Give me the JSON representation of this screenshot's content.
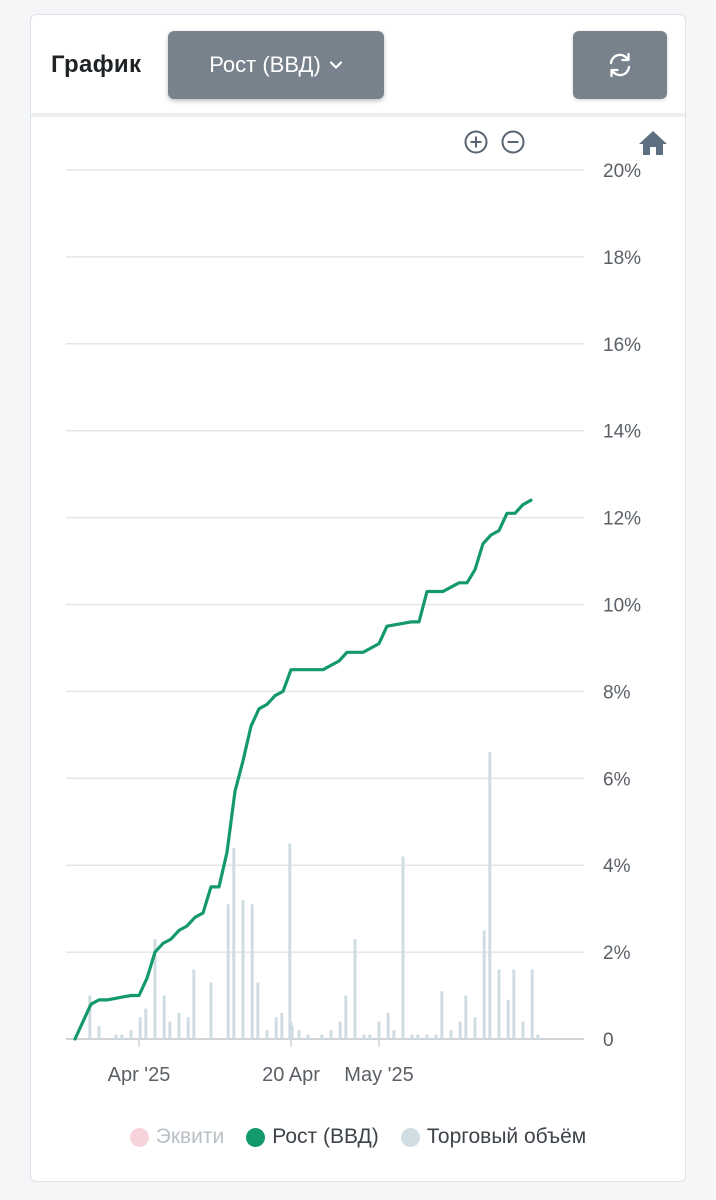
{
  "header": {
    "title": "График",
    "dropdown_label": "Рост (ВВД)",
    "refresh_icon": "refresh-icon"
  },
  "toolbar": {
    "zoom_in_icon": "zoom-in-icon",
    "zoom_out_icon": "zoom-out-icon",
    "home_icon": "home-icon"
  },
  "colors": {
    "growth_line": "#149a6a",
    "volume_bars": "#cfdde3",
    "equity_legend": "#f6d3da",
    "grid": "#e3e6e9",
    "button": "#78828c"
  },
  "legend": [
    {
      "label": "Эквити",
      "color": "#f6d3da",
      "active": false
    },
    {
      "label": "Рост (ВВД)",
      "color": "#149a6a",
      "active": true
    },
    {
      "label": "Торговый объём",
      "color": "#cfdde3",
      "active": true
    }
  ],
  "chart_data": {
    "type": "line",
    "x_axis": {
      "start": "2025-03-24",
      "end": "2025-05-24",
      "ticks": [
        {
          "date": "2025-04-01",
          "label": "Apr '25"
        },
        {
          "date": "2025-04-20",
          "label": "20 Apr"
        },
        {
          "date": "2025-05-01",
          "label": "May '25"
        }
      ]
    },
    "y_axis": {
      "ylim": [
        0,
        20
      ],
      "position": "right",
      "ticks": [
        0,
        2,
        4,
        6,
        8,
        10,
        12,
        14,
        16,
        18,
        20
      ],
      "tick_labels": [
        "0",
        "2%",
        "4%",
        "6%",
        "8%",
        "10%",
        "12%",
        "14%",
        "16%",
        "18%",
        "20%"
      ]
    },
    "grid": true,
    "legend_position": "bottom",
    "series": [
      {
        "name": "Рост (ВВД)",
        "type": "line",
        "color": "#149a6a",
        "points": [
          [
            "2025-03-24",
            0.0
          ],
          [
            "2025-03-26",
            0.8
          ],
          [
            "2025-03-27",
            0.9
          ],
          [
            "2025-03-28",
            0.9
          ],
          [
            "2025-03-31",
            1.0
          ],
          [
            "2025-04-01",
            1.0
          ],
          [
            "2025-04-02",
            1.4
          ],
          [
            "2025-04-03",
            2.0
          ],
          [
            "2025-04-04",
            2.2
          ],
          [
            "2025-04-05",
            2.3
          ],
          [
            "2025-04-06",
            2.5
          ],
          [
            "2025-04-07",
            2.6
          ],
          [
            "2025-04-08",
            2.8
          ],
          [
            "2025-04-09",
            2.9
          ],
          [
            "2025-04-10",
            3.5
          ],
          [
            "2025-04-11",
            3.5
          ],
          [
            "2025-04-12",
            4.3
          ],
          [
            "2025-04-13",
            5.7
          ],
          [
            "2025-04-14",
            6.4
          ],
          [
            "2025-04-15",
            7.2
          ],
          [
            "2025-04-16",
            7.6
          ],
          [
            "2025-04-17",
            7.7
          ],
          [
            "2025-04-18",
            7.9
          ],
          [
            "2025-04-19",
            8.0
          ],
          [
            "2025-04-20",
            8.5
          ],
          [
            "2025-04-22",
            8.5
          ],
          [
            "2025-04-24",
            8.5
          ],
          [
            "2025-04-26",
            8.7
          ],
          [
            "2025-04-27",
            8.9
          ],
          [
            "2025-04-29",
            8.9
          ],
          [
            "2025-04-30",
            9.0
          ],
          [
            "2025-05-01",
            9.1
          ],
          [
            "2025-05-02",
            9.5
          ],
          [
            "2025-05-05",
            9.6
          ],
          [
            "2025-05-06",
            9.6
          ],
          [
            "2025-05-07",
            10.3
          ],
          [
            "2025-05-09",
            10.3
          ],
          [
            "2025-05-11",
            10.5
          ],
          [
            "2025-05-12",
            10.5
          ],
          [
            "2025-05-13",
            10.8
          ],
          [
            "2025-05-14",
            11.4
          ],
          [
            "2025-05-15",
            11.6
          ],
          [
            "2025-05-16",
            11.7
          ],
          [
            "2025-05-17",
            12.1
          ],
          [
            "2025-05-18",
            12.1
          ],
          [
            "2025-05-19",
            12.3
          ],
          [
            "2025-05-20",
            12.4
          ]
        ]
      },
      {
        "name": "Торговый объём",
        "type": "bar",
        "color": "#cfdde3",
        "points": [
          [
            "2025-03-26",
            1.0
          ],
          [
            "2025-03-27",
            0.3
          ],
          [
            "2025-03-29",
            0.1
          ],
          [
            "2025-03-30",
            0.1
          ],
          [
            "2025-03-31",
            0.2
          ],
          [
            "2025-04-01",
            0.5
          ],
          [
            "2025-04-02",
            0.7
          ],
          [
            "2025-04-03",
            2.3
          ],
          [
            "2025-04-04",
            1.0
          ],
          [
            "2025-04-05",
            0.4
          ],
          [
            "2025-04-06",
            0.6
          ],
          [
            "2025-04-07",
            0.5
          ],
          [
            "2025-04-08",
            1.6
          ],
          [
            "2025-04-10",
            1.3
          ],
          [
            "2025-04-12",
            3.1
          ],
          [
            "2025-04-13",
            4.4
          ],
          [
            "2025-04-14",
            3.2
          ],
          [
            "2025-04-15",
            3.1
          ],
          [
            "2025-04-16",
            1.3
          ],
          [
            "2025-04-17",
            0.2
          ],
          [
            "2025-04-18",
            0.5
          ],
          [
            "2025-04-19",
            0.6
          ],
          [
            "2025-04-20",
            0.4
          ],
          [
            "2025-04-20",
            0.3
          ],
          [
            "2025-04-20",
            4.5
          ],
          [
            "2025-04-21",
            0.2
          ],
          [
            "2025-04-22",
            0.1
          ],
          [
            "2025-04-24",
            0.1
          ],
          [
            "2025-04-25",
            0.2
          ],
          [
            "2025-04-26",
            0.4
          ],
          [
            "2025-04-27",
            1.0
          ],
          [
            "2025-04-28",
            2.3
          ],
          [
            "2025-04-29",
            0.1
          ],
          [
            "2025-04-30",
            0.1
          ],
          [
            "2025-05-01",
            0.4
          ],
          [
            "2025-05-02",
            0.6
          ],
          [
            "2025-05-03",
            0.2
          ],
          [
            "2025-05-04",
            4.2
          ],
          [
            "2025-05-05",
            0.1
          ],
          [
            "2025-05-06",
            0.1
          ],
          [
            "2025-05-07",
            0.1
          ],
          [
            "2025-05-08",
            0.1
          ],
          [
            "2025-05-09",
            1.1
          ],
          [
            "2025-05-10",
            0.2
          ],
          [
            "2025-05-11",
            0.4
          ],
          [
            "2025-05-12",
            1.0
          ],
          [
            "2025-05-13",
            0.5
          ],
          [
            "2025-05-14",
            2.5
          ],
          [
            "2025-05-15",
            6.6
          ],
          [
            "2025-05-16",
            1.6
          ],
          [
            "2025-05-17",
            0.9
          ],
          [
            "2025-05-18",
            1.6
          ],
          [
            "2025-05-19",
            0.4
          ],
          [
            "2025-05-20",
            1.6
          ],
          [
            "2025-05-21",
            0.1
          ]
        ]
      }
    ]
  }
}
